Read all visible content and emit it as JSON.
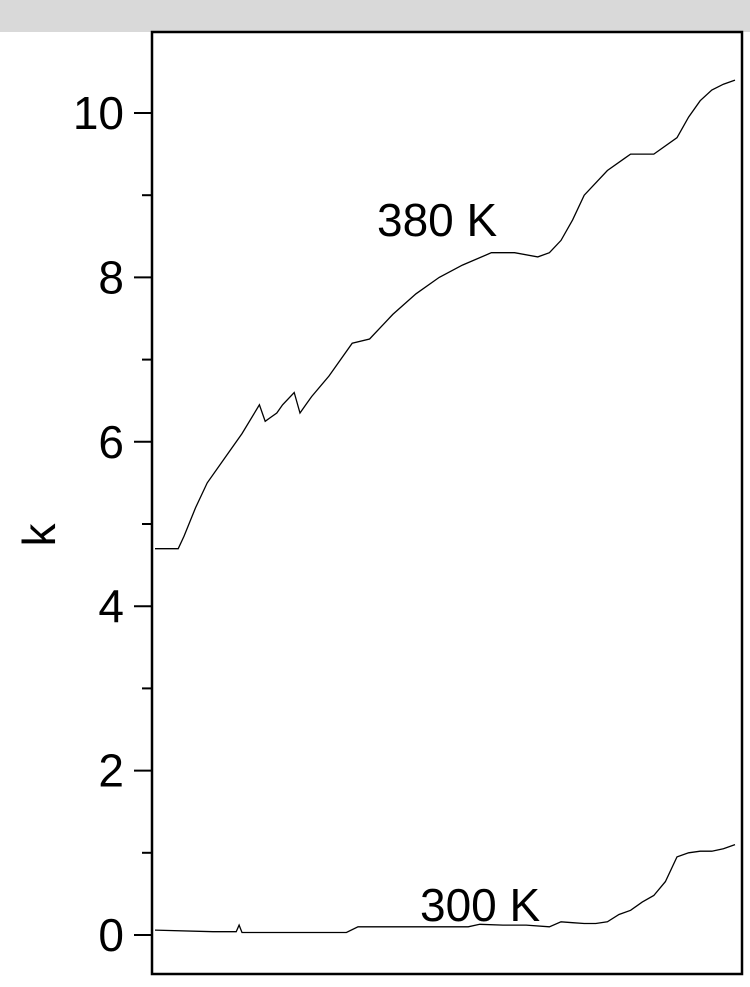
{
  "chart_data": {
    "type": "line",
    "title": "",
    "xlabel": "",
    "ylabel": "k",
    "ylim": [
      -0.5,
      10.8
    ],
    "xlim": [
      0,
      100
    ],
    "yticks": [
      "0",
      "2",
      "4",
      "6",
      "8",
      "10"
    ],
    "grid": false,
    "legend": "none",
    "series": [
      {
        "name": "380 K",
        "x": [
          0,
          4,
          5,
          7,
          9,
          12,
          15,
          18,
          19,
          20,
          21,
          22,
          24,
          25,
          26,
          27,
          30,
          34,
          37,
          39,
          41,
          45,
          49,
          53,
          58,
          62,
          66,
          68,
          70,
          72,
          74,
          78,
          81,
          82,
          86,
          90,
          92,
          94,
          96,
          98,
          100
        ],
        "y": [
          4.7,
          4.7,
          4.85,
          5.2,
          5.5,
          5.8,
          6.1,
          6.45,
          6.25,
          6.3,
          6.35,
          6.45,
          6.6,
          6.35,
          6.45,
          6.55,
          6.8,
          7.2,
          7.25,
          7.4,
          7.55,
          7.8,
          8.0,
          8.15,
          8.3,
          8.3,
          8.25,
          8.3,
          8.45,
          8.7,
          9.0,
          9.3,
          9.45,
          9.5,
          9.5,
          9.7,
          9.95,
          10.15,
          10.28,
          10.35,
          10.4
        ]
      },
      {
        "name": "300 K",
        "x": [
          0,
          10,
          14,
          14.5,
          15,
          16,
          20,
          28,
          33,
          35,
          38,
          44,
          50,
          54,
          56,
          60,
          64,
          68,
          70,
          72,
          74,
          76,
          78,
          80,
          82,
          84,
          86,
          88,
          90,
          92,
          94,
          96,
          98,
          100
        ],
        "y": [
          0.06,
          0.04,
          0.04,
          0.12,
          0.03,
          0.03,
          0.03,
          0.03,
          0.03,
          0.1,
          0.1,
          0.1,
          0.1,
          0.1,
          0.13,
          0.12,
          0.12,
          0.1,
          0.16,
          0.15,
          0.14,
          0.14,
          0.16,
          0.25,
          0.3,
          0.4,
          0.48,
          0.65,
          0.95,
          1.0,
          1.02,
          1.02,
          1.05,
          1.1
        ]
      }
    ]
  }
}
